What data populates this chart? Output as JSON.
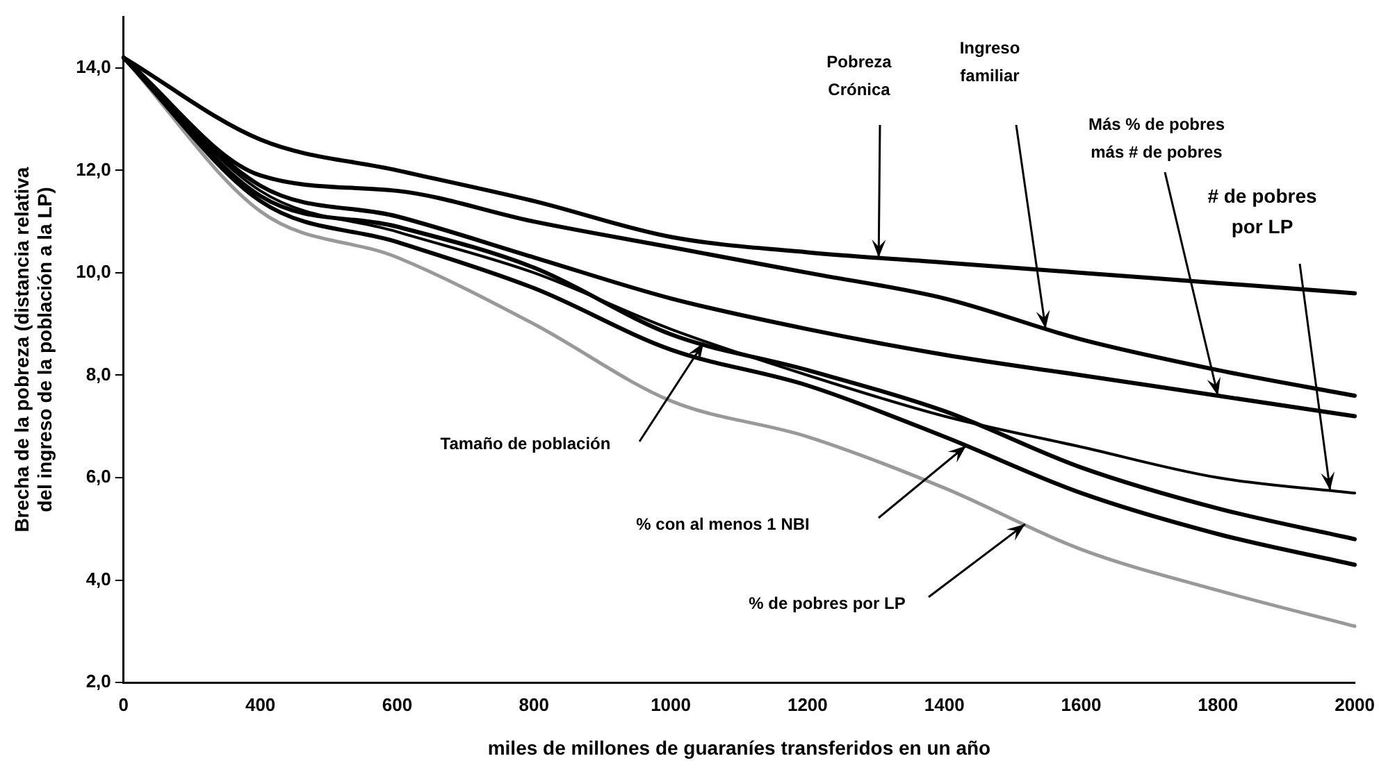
{
  "chart_data": {
    "type": "line",
    "xlabel": "miles de millones de guaraníes transferidos en un año",
    "ylabel": "Brecha de la pobreza (distancia relativa\ndel ingreso de la población a la LP)",
    "categories": [
      "0",
      "400",
      "600",
      "800",
      "1000",
      "1200",
      "1400",
      "1600",
      "1800",
      "2000"
    ],
    "ylim": [
      2,
      15
    ],
    "yticks": [
      {
        "value": 2,
        "label": "2,0"
      },
      {
        "value": 4,
        "label": "4,0"
      },
      {
        "value": 6,
        "label": "6,0"
      },
      {
        "value": 8,
        "label": "8,0"
      },
      {
        "value": 10,
        "label": "10,0"
      },
      {
        "value": 12,
        "label": "12,0"
      },
      {
        "value": 14,
        "label": "14,0"
      }
    ],
    "annotations": [
      "Pobreza Crónica",
      "Ingreso familiar",
      {
        "text": "Más % de pobres más # de pobres",
        "x": "1800",
        "y": 7.6
      },
      "# de pobres por LP",
      "Tamaño de población",
      "% con al menos 1 NBI",
      "% de pobres por LP"
    ],
    "grid": false,
    "legend": false,
    "marker": "none",
    "line_style": "solid",
    "series": [
      {
        "color": "#000000",
        "values": [
          14.2,
          12.6,
          12.0,
          11.4,
          10.7,
          10.4,
          10.2,
          10.0,
          9.8,
          9.6
        ]
      },
      {
        "color": "#000000",
        "values": [
          14.2,
          11.9,
          11.6,
          11.0,
          10.5,
          10.0,
          9.5,
          8.7,
          8.1,
          7.6
        ]
      },
      {
        "color": "#000000",
        "values": [
          14.2,
          11.7,
          11.1,
          10.3,
          9.5,
          8.9,
          8.4,
          8.0,
          7.6,
          7.2
        ]
      },
      {
        "color": "#000000",
        "values": [
          14.2,
          11.6,
          10.8,
          10.0,
          8.9,
          8.0,
          7.2,
          6.6,
          6.0,
          5.7
        ]
      },
      {
        "color": "#000000",
        "values": [
          14.2,
          11.5,
          10.9,
          10.1,
          8.8,
          8.1,
          7.3,
          6.2,
          5.4,
          4.8
        ]
      },
      {
        "color": "#000000",
        "values": [
          14.2,
          11.4,
          10.6,
          9.7,
          8.5,
          7.8,
          6.8,
          5.7,
          4.9,
          4.3
        ]
      },
      {
        "color": "#999999",
        "values": [
          14.2,
          11.2,
          10.3,
          9.0,
          7.5,
          6.8,
          5.8,
          4.6,
          3.8,
          3.1
        ]
      }
    ]
  }
}
